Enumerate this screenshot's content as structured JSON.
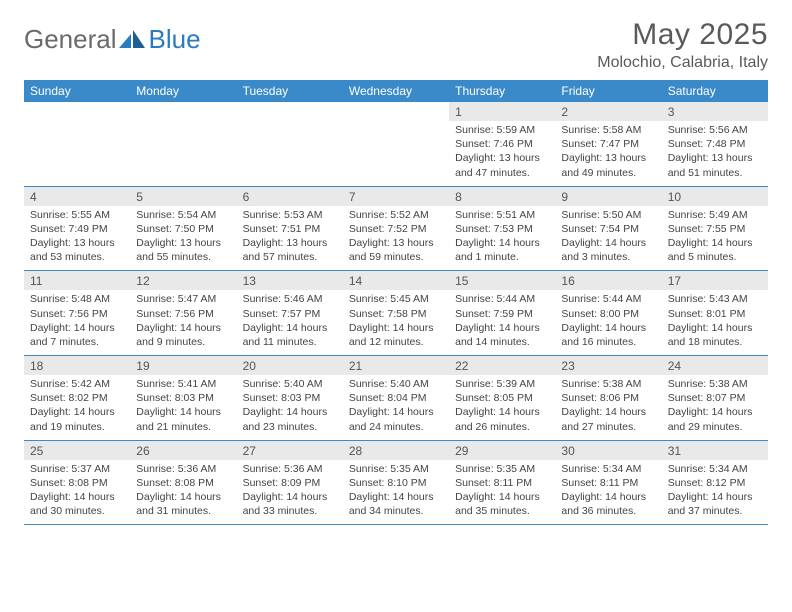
{
  "brand": {
    "part1": "General",
    "part2": "Blue"
  },
  "title": "May 2025",
  "location": "Molochio, Calabria, Italy",
  "colors": {
    "header_bg": "#3a8ac9",
    "band_bg": "#e9e9e9",
    "text_main": "#5a5a5a",
    "text_cell": "#444444",
    "rule": "#3a8ac9",
    "logo_gray": "#6a6a6a",
    "logo_blue": "#2a7bbf"
  },
  "day_names": [
    "Sunday",
    "Monday",
    "Tuesday",
    "Wednesday",
    "Thursday",
    "Friday",
    "Saturday"
  ],
  "weeks": [
    {
      "dates": [
        "",
        "",
        "",
        "",
        "1",
        "2",
        "3"
      ],
      "cells": [
        "",
        "",
        "",
        "",
        "Sunrise: 5:59 AM\nSunset: 7:46 PM\nDaylight: 13 hours and 47 minutes.",
        "Sunrise: 5:58 AM\nSunset: 7:47 PM\nDaylight: 13 hours and 49 minutes.",
        "Sunrise: 5:56 AM\nSunset: 7:48 PM\nDaylight: 13 hours and 51 minutes."
      ]
    },
    {
      "dates": [
        "4",
        "5",
        "6",
        "7",
        "8",
        "9",
        "10"
      ],
      "cells": [
        "Sunrise: 5:55 AM\nSunset: 7:49 PM\nDaylight: 13 hours and 53 minutes.",
        "Sunrise: 5:54 AM\nSunset: 7:50 PM\nDaylight: 13 hours and 55 minutes.",
        "Sunrise: 5:53 AM\nSunset: 7:51 PM\nDaylight: 13 hours and 57 minutes.",
        "Sunrise: 5:52 AM\nSunset: 7:52 PM\nDaylight: 13 hours and 59 minutes.",
        "Sunrise: 5:51 AM\nSunset: 7:53 PM\nDaylight: 14 hours and 1 minute.",
        "Sunrise: 5:50 AM\nSunset: 7:54 PM\nDaylight: 14 hours and 3 minutes.",
        "Sunrise: 5:49 AM\nSunset: 7:55 PM\nDaylight: 14 hours and 5 minutes."
      ]
    },
    {
      "dates": [
        "11",
        "12",
        "13",
        "14",
        "15",
        "16",
        "17"
      ],
      "cells": [
        "Sunrise: 5:48 AM\nSunset: 7:56 PM\nDaylight: 14 hours and 7 minutes.",
        "Sunrise: 5:47 AM\nSunset: 7:56 PM\nDaylight: 14 hours and 9 minutes.",
        "Sunrise: 5:46 AM\nSunset: 7:57 PM\nDaylight: 14 hours and 11 minutes.",
        "Sunrise: 5:45 AM\nSunset: 7:58 PM\nDaylight: 14 hours and 12 minutes.",
        "Sunrise: 5:44 AM\nSunset: 7:59 PM\nDaylight: 14 hours and 14 minutes.",
        "Sunrise: 5:44 AM\nSunset: 8:00 PM\nDaylight: 14 hours and 16 minutes.",
        "Sunrise: 5:43 AM\nSunset: 8:01 PM\nDaylight: 14 hours and 18 minutes."
      ]
    },
    {
      "dates": [
        "18",
        "19",
        "20",
        "21",
        "22",
        "23",
        "24"
      ],
      "cells": [
        "Sunrise: 5:42 AM\nSunset: 8:02 PM\nDaylight: 14 hours and 19 minutes.",
        "Sunrise: 5:41 AM\nSunset: 8:03 PM\nDaylight: 14 hours and 21 minutes.",
        "Sunrise: 5:40 AM\nSunset: 8:03 PM\nDaylight: 14 hours and 23 minutes.",
        "Sunrise: 5:40 AM\nSunset: 8:04 PM\nDaylight: 14 hours and 24 minutes.",
        "Sunrise: 5:39 AM\nSunset: 8:05 PM\nDaylight: 14 hours and 26 minutes.",
        "Sunrise: 5:38 AM\nSunset: 8:06 PM\nDaylight: 14 hours and 27 minutes.",
        "Sunrise: 5:38 AM\nSunset: 8:07 PM\nDaylight: 14 hours and 29 minutes."
      ]
    },
    {
      "dates": [
        "25",
        "26",
        "27",
        "28",
        "29",
        "30",
        "31"
      ],
      "cells": [
        "Sunrise: 5:37 AM\nSunset: 8:08 PM\nDaylight: 14 hours and 30 minutes.",
        "Sunrise: 5:36 AM\nSunset: 8:08 PM\nDaylight: 14 hours and 31 minutes.",
        "Sunrise: 5:36 AM\nSunset: 8:09 PM\nDaylight: 14 hours and 33 minutes.",
        "Sunrise: 5:35 AM\nSunset: 8:10 PM\nDaylight: 14 hours and 34 minutes.",
        "Sunrise: 5:35 AM\nSunset: 8:11 PM\nDaylight: 14 hours and 35 minutes.",
        "Sunrise: 5:34 AM\nSunset: 8:11 PM\nDaylight: 14 hours and 36 minutes.",
        "Sunrise: 5:34 AM\nSunset: 8:12 PM\nDaylight: 14 hours and 37 minutes."
      ]
    }
  ]
}
